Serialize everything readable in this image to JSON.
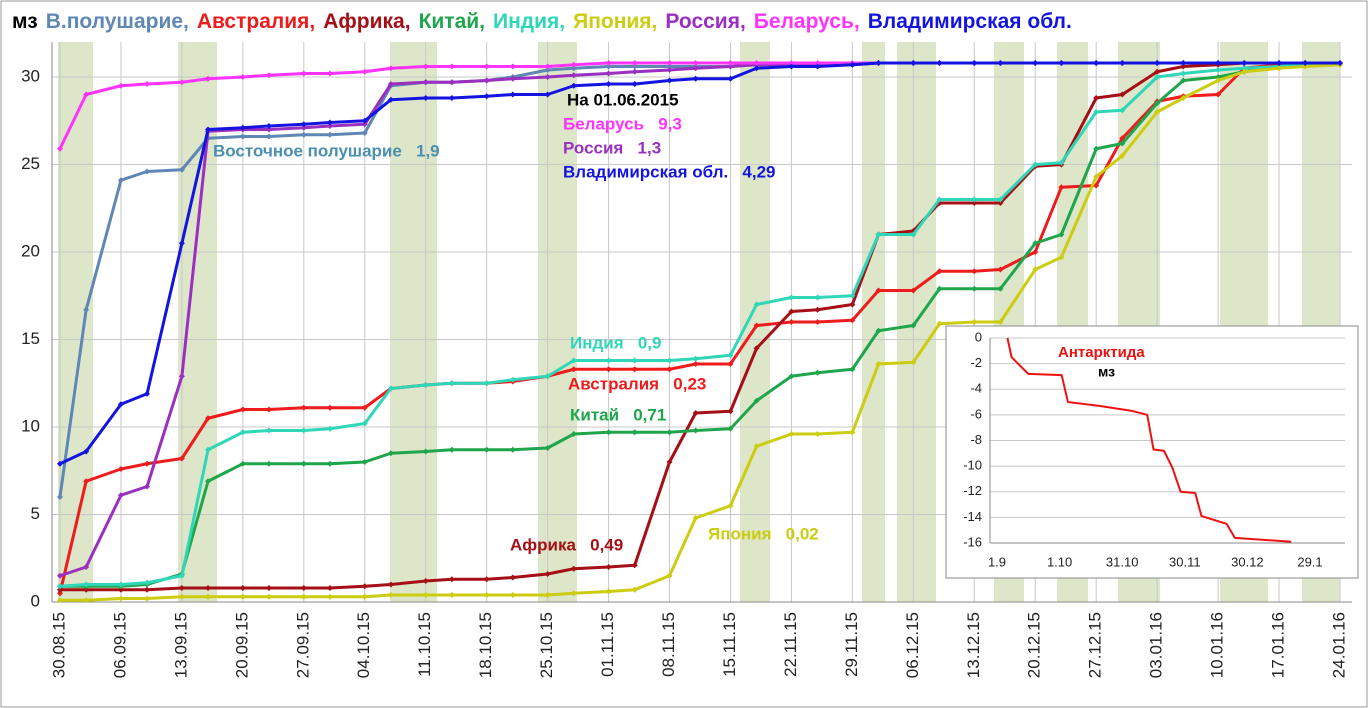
{
  "chart_data": [
    {
      "type": "line",
      "ylabel": "мз",
      "x": [
        "30.08.15",
        "02.09.15",
        "06.09.15",
        "09.09.15",
        "13.09.15",
        "16.09.15",
        "20.09.15",
        "23.09.15",
        "27.09.15",
        "30.09.15",
        "04.10.15",
        "07.10.15",
        "11.10.15",
        "14.10.15",
        "18.10.15",
        "21.10.15",
        "25.10.15",
        "28.10.15",
        "01.11.15",
        "04.11.15",
        "08.11.15",
        "11.11.15",
        "15.11.15",
        "18.11.15",
        "22.11.15",
        "25.11.15",
        "29.11.15",
        "02.12.15",
        "06.12.15",
        "09.12.15",
        "13.12.15",
        "16.12.15",
        "20.12.15",
        "23.12.15",
        "27.12.15",
        "30.12.15",
        "03.01.16",
        "06.01.16",
        "10.01.16",
        "13.01.16",
        "17.01.16",
        "20.01.16",
        "24.01.16"
      ],
      "xlim": [
        "30.08.15",
        "24.01.16"
      ],
      "xticks": [
        "30.08.15",
        "06.09.15",
        "13.09.15",
        "20.09.15",
        "27.09.15",
        "04.10.15",
        "11.10.15",
        "18.10.15",
        "25.10.15",
        "01.11.15",
        "08.11.15",
        "15.11.15",
        "22.11.15",
        "29.11.15",
        "06.12.15",
        "13.12.15",
        "20.12.15",
        "27.12.15",
        "03.01.16",
        "10.01.16",
        "17.01.16",
        "24.01.16"
      ],
      "ylim": [
        0,
        32
      ],
      "yticks": [
        0,
        5,
        10,
        15,
        20,
        25,
        30
      ],
      "grid": true,
      "series": [
        {
          "name": "В.полушарие,",
          "color": "#5f87b5",
          "values": [
            6,
            16.7,
            24.1,
            24.6,
            24.7,
            26.5,
            26.6,
            26.6,
            26.7,
            26.7,
            26.8,
            29.5,
            29.7,
            29.7,
            29.8,
            30.0,
            30.4,
            30.5,
            30.6,
            30.6,
            30.6,
            30.6,
            30.6,
            30.7,
            30.7,
            30.7,
            30.7,
            30.8,
            30.8,
            30.8,
            30.8,
            30.8,
            30.8,
            30.8,
            30.8,
            30.8,
            30.8,
            30.8,
            30.8,
            30.8,
            30.8,
            30.8,
            30.8
          ]
        },
        {
          "name": "Австралия,",
          "color": "#ee1c1c",
          "values": [
            0.5,
            6.9,
            7.6,
            7.9,
            8.2,
            10.5,
            11.0,
            11.0,
            11.1,
            11.1,
            11.1,
            12.2,
            12.4,
            12.5,
            12.5,
            12.6,
            12.9,
            13.3,
            13.3,
            13.3,
            13.3,
            13.6,
            13.6,
            15.8,
            16.0,
            16.0,
            16.1,
            17.8,
            17.8,
            18.9,
            18.9,
            19.0,
            20.0,
            23.7,
            23.8,
            26.5,
            28.6,
            28.9,
            29.0,
            30.5,
            30.7,
            30.8,
            30.8
          ]
        },
        {
          "name": "Африка,",
          "color": "#a50f15",
          "values": [
            0.7,
            0.7,
            0.7,
            0.7,
            0.8,
            0.8,
            0.8,
            0.8,
            0.8,
            0.8,
            0.9,
            1.0,
            1.2,
            1.3,
            1.3,
            1.4,
            1.6,
            1.9,
            2.0,
            2.1,
            8.0,
            10.8,
            10.9,
            14.5,
            16.6,
            16.7,
            17.0,
            21.0,
            21.2,
            22.8,
            22.8,
            22.8,
            24.9,
            25.0,
            28.8,
            29.0,
            30.3,
            30.6,
            30.7,
            30.8,
            30.8,
            30.8,
            30.8
          ]
        },
        {
          "name": "Китай,",
          "color": "#1fa64c",
          "values": [
            0.9,
            0.9,
            0.9,
            1.0,
            1.6,
            6.9,
            7.9,
            7.9,
            7.9,
            7.9,
            8.0,
            8.5,
            8.6,
            8.7,
            8.7,
            8.7,
            8.8,
            9.6,
            9.7,
            9.7,
            9.7,
            9.8,
            9.9,
            11.5,
            12.9,
            13.1,
            13.3,
            15.5,
            15.8,
            17.9,
            17.9,
            17.9,
            20.5,
            21.0,
            25.9,
            26.2,
            28.5,
            29.8,
            30.0,
            30.3,
            30.6,
            30.7,
            30.8
          ]
        },
        {
          "name": "Индия,",
          "color": "#2fd6b8",
          "values": [
            0.9,
            1.0,
            1.0,
            1.1,
            1.5,
            8.7,
            9.7,
            9.8,
            9.8,
            9.9,
            10.2,
            12.2,
            12.4,
            12.5,
            12.5,
            12.7,
            12.9,
            13.8,
            13.8,
            13.8,
            13.8,
            13.9,
            14.1,
            17.0,
            17.4,
            17.4,
            17.5,
            21.0,
            21.0,
            23.0,
            23.0,
            23.0,
            25.0,
            25.1,
            28.0,
            28.1,
            30.0,
            30.2,
            30.4,
            30.5,
            30.6,
            30.7,
            30.8
          ]
        },
        {
          "name": "Япония,",
          "color": "#cccc10",
          "values": [
            0.1,
            0.1,
            0.2,
            0.2,
            0.3,
            0.3,
            0.3,
            0.3,
            0.3,
            0.3,
            0.3,
            0.4,
            0.4,
            0.4,
            0.4,
            0.4,
            0.4,
            0.5,
            0.6,
            0.7,
            1.5,
            4.8,
            5.5,
            8.9,
            9.6,
            9.6,
            9.7,
            13.6,
            13.7,
            15.9,
            16.0,
            16.0,
            19.0,
            19.7,
            24.3,
            25.5,
            28.0,
            28.8,
            29.8,
            30.3,
            30.5,
            30.6,
            30.7
          ]
        },
        {
          "name": "Россия,",
          "color": "#9a2fc0",
          "values": [
            1.5,
            2.0,
            6.1,
            6.6,
            12.9,
            26.9,
            27.0,
            27.0,
            27.1,
            27.2,
            27.3,
            29.6,
            29.7,
            29.7,
            29.8,
            29.9,
            30.0,
            30.1,
            30.2,
            30.3,
            30.4,
            30.5,
            30.6,
            30.7,
            30.7,
            30.7,
            30.7,
            30.8,
            30.8,
            30.8,
            30.8,
            30.8,
            30.8,
            30.8,
            30.8,
            30.8,
            30.8,
            30.8,
            30.8,
            30.8,
            30.8,
            30.8,
            30.8
          ]
        },
        {
          "name": "Беларусь,",
          "color": "#ff33ff",
          "values": [
            25.9,
            29.0,
            29.5,
            29.6,
            29.7,
            29.9,
            30.0,
            30.1,
            30.2,
            30.2,
            30.3,
            30.5,
            30.6,
            30.6,
            30.6,
            30.6,
            30.6,
            30.7,
            30.8,
            30.8,
            30.8,
            30.8,
            30.8,
            30.8,
            30.8,
            30.8,
            30.8,
            30.8,
            30.8,
            30.8,
            30.8,
            30.8,
            30.8,
            30.8,
            30.8,
            30.8,
            30.8,
            30.8,
            30.8,
            30.8,
            30.8,
            30.8,
            30.8
          ]
        },
        {
          "name": "Владимирская обл.",
          "color": "#1414e0",
          "values": [
            7.9,
            8.6,
            11.3,
            11.9,
            20.5,
            27.0,
            27.1,
            27.2,
            27.3,
            27.4,
            27.5,
            28.7,
            28.8,
            28.8,
            28.9,
            29.0,
            29.0,
            29.5,
            29.6,
            29.6,
            29.8,
            29.9,
            29.9,
            30.5,
            30.6,
            30.6,
            30.7,
            30.8,
            30.8,
            30.8,
            30.8,
            30.8,
            30.8,
            30.8,
            30.8,
            30.8,
            30.8,
            30.8,
            30.8,
            30.8,
            30.8,
            30.8,
            30.8
          ]
        }
      ],
      "annotations": [
        {
          "text": "Восточное полушарие   1,9",
          "color": "#4a8fb0"
        },
        {
          "text": "На 01.06.2015",
          "color": "#000000"
        },
        {
          "text": "Беларусь   9,3",
          "color": "#ff33ff"
        },
        {
          "text": "Россия   1,3",
          "color": "#9a2fc0"
        },
        {
          "text": "Владимирская обл.   4,29",
          "color": "#1414e0"
        },
        {
          "text": "Индия   0,9",
          "color": "#2fd6b8"
        },
        {
          "text": "Австралия   0,23",
          "color": "#ee1c1c"
        },
        {
          "text": "Китай   0,71",
          "color": "#1fa64c"
        },
        {
          "text": "Африка   0,49",
          "color": "#a50f15"
        },
        {
          "text": "Япония   0,02",
          "color": "#cccc10"
        }
      ]
    },
    {
      "type": "line",
      "ylabel": "мз",
      "x": [
        "6.9",
        "8.9",
        "16.9",
        "2.10",
        "5.10",
        "20.10",
        "5.11",
        "12.11",
        "15.11",
        "20.11",
        "24.11",
        "28.11",
        "5.12",
        "8.12",
        "20.12",
        "24.12",
        "20.1"
      ],
      "xlim": [
        "1.9",
        "29.1"
      ],
      "xticks": [
        "1.9",
        "1.10",
        "31.10",
        "30.11",
        "30.12",
        "29.1"
      ],
      "ylim": [
        -16,
        0
      ],
      "yticks": [
        0,
        -2,
        -4,
        -6,
        -8,
        -10,
        -12,
        -14,
        -16
      ],
      "grid": true,
      "series": [
        {
          "name": "Антарктида",
          "color": "#ee1111",
          "values": [
            0,
            -1.5,
            -2.8,
            -2.9,
            -5.0,
            -5.3,
            -5.7,
            -6.0,
            -8.7,
            -8.8,
            -10.1,
            -12.0,
            -12.1,
            -13.9,
            -14.5,
            -15.6,
            -15.9
          ]
        }
      ]
    }
  ]
}
